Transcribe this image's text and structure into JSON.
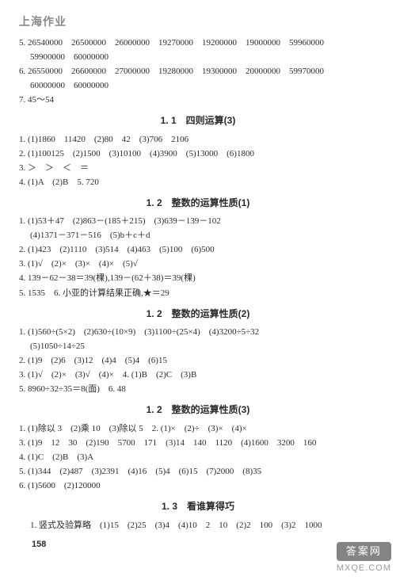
{
  "brand": "上海作业",
  "blocks": [
    {
      "type": "line",
      "cls": "",
      "text": "5. 26540000　26500000　26000000　19270000　19200000　19000000　59960000"
    },
    {
      "type": "line",
      "cls": "indent2",
      "text": "59900000　60000000"
    },
    {
      "type": "line",
      "cls": "",
      "text": "6. 26550000　26600000　27000000　19280000　19300000　20000000　59970000"
    },
    {
      "type": "line",
      "cls": "indent2",
      "text": "60000000　60000000"
    },
    {
      "type": "line",
      "cls": "",
      "text": "7. 45～54"
    },
    {
      "type": "title",
      "text": "1. 1　四则运算(3)"
    },
    {
      "type": "line",
      "cls": "",
      "text": "1. (1)1860　11420　(2)80　42　(3)706　2106"
    },
    {
      "type": "line",
      "cls": "",
      "text": "2. (1)100125　(2)1500　(3)10100　(4)3900　(5)13000　(6)1800"
    },
    {
      "type": "line",
      "cls": "",
      "text": "3. ＞　＞　＜　＝"
    },
    {
      "type": "line",
      "cls": "",
      "text": "4. (1)A　(2)B　5. 720"
    },
    {
      "type": "title",
      "text": "1. 2　整数的运算性质(1)"
    },
    {
      "type": "line",
      "cls": "",
      "text": "1. (1)53＋47　(2)863－(185＋215)　(3)639－139－102"
    },
    {
      "type": "line",
      "cls": "indent2",
      "text": "(4)1371－371－516　(5)b＋c＋d"
    },
    {
      "type": "line",
      "cls": "",
      "text": "2. (1)423　(2)1110　(3)514　(4)463　(5)100　(6)500"
    },
    {
      "type": "line",
      "cls": "",
      "text": "3. (1)√　(2)×　(3)×　(4)×　(5)√"
    },
    {
      "type": "line",
      "cls": "",
      "text": "4. 139－62－38＝39(棵),139－(62＋38)＝39(棵)"
    },
    {
      "type": "line",
      "cls": "",
      "text": "5. 1535　6. 小亚的计算结果正确,★＝29"
    },
    {
      "type": "title",
      "text": "1. 2　整数的运算性质(2)"
    },
    {
      "type": "line",
      "cls": "",
      "text": "1. (1)560÷(5×2)　(2)630÷(10×9)　(3)1100÷(25×4)　(4)3200÷5÷32"
    },
    {
      "type": "line",
      "cls": "indent2",
      "text": "(5)1050÷14÷25"
    },
    {
      "type": "line",
      "cls": "",
      "text": "2. (1)9　(2)6　(3)12　(4)4　(5)4　(6)15"
    },
    {
      "type": "line",
      "cls": "",
      "text": "3. (1)√　(2)×　(3)√　(4)×　4. (1)B　(2)C　(3)B"
    },
    {
      "type": "line",
      "cls": "",
      "text": "5. 8960÷32÷35＝8(面)　6. 48"
    },
    {
      "type": "title",
      "text": "1. 2　整数的运算性质(3)"
    },
    {
      "type": "line",
      "cls": "",
      "text": "1. (1)除以 3　(2)乘 10　(3)除以 5　2. (1)×　(2)÷　(3)×　(4)×"
    },
    {
      "type": "line",
      "cls": "",
      "text": "3. (1)9　12　30　(2)190　5700　171　(3)14　140　1120　(4)1600　3200　160"
    },
    {
      "type": "line",
      "cls": "",
      "text": "4. (1)C　(2)B　(3)A"
    },
    {
      "type": "line",
      "cls": "",
      "text": "5. (1)344　(2)487　(3)2391　(4)16　(5)4　(6)15　(7)2000　(8)35"
    },
    {
      "type": "line",
      "cls": "",
      "text": "6. (1)5600　(2)120000"
    },
    {
      "type": "title",
      "text": "1. 3　看谁算得巧"
    },
    {
      "type": "line",
      "cls": "indent2",
      "text": "1. 竖式及验算略　(1)15　(2)25　(3)4　(4)10　2　10　(2)2　100　(3)2　1000"
    }
  ],
  "pagenum": "158",
  "watermark": {
    "top": "答案网",
    "bottom": "MXQE.COM"
  }
}
